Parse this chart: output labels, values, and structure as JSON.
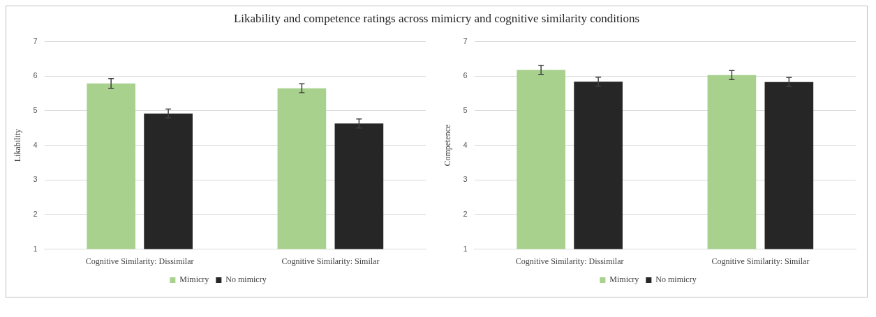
{
  "chart_data": [
    {
      "type": "bar",
      "title": "Likability and competence ratings across mimicry and cognitive similarity conditions",
      "ylabel": "Likability",
      "categories": [
        "Cognitive Similarity: Dissimilar",
        "Cognitive Similarity: Similar"
      ],
      "series": [
        {
          "name": "Mimicry",
          "color": "#a9d18e",
          "values": [
            5.79,
            5.65
          ],
          "errors": [
            0.14,
            0.13
          ]
        },
        {
          "name": "No mimicry",
          "color": "#262626",
          "values": [
            4.92,
            4.63
          ],
          "errors": [
            0.13,
            0.13
          ]
        }
      ],
      "ylim": [
        1,
        7
      ],
      "yticks": [
        1,
        2,
        3,
        4,
        5,
        6,
        7
      ],
      "grid": "y",
      "legend": "bottom"
    },
    {
      "type": "bar",
      "ylabel": "Competence",
      "categories": [
        "Cognitive Similarity: Dissimilar",
        "Cognitive Similarity: Similar"
      ],
      "series": [
        {
          "name": "Mimicry",
          "color": "#a9d18e",
          "values": [
            6.18,
            6.03
          ],
          "errors": [
            0.13,
            0.13
          ]
        },
        {
          "name": "No mimicry",
          "color": "#262626",
          "values": [
            5.84,
            5.83
          ],
          "errors": [
            0.13,
            0.13
          ]
        }
      ],
      "ylim": [
        1,
        7
      ],
      "yticks": [
        1,
        2,
        3,
        4,
        5,
        6,
        7
      ],
      "grid": "y",
      "legend": "bottom"
    }
  ]
}
